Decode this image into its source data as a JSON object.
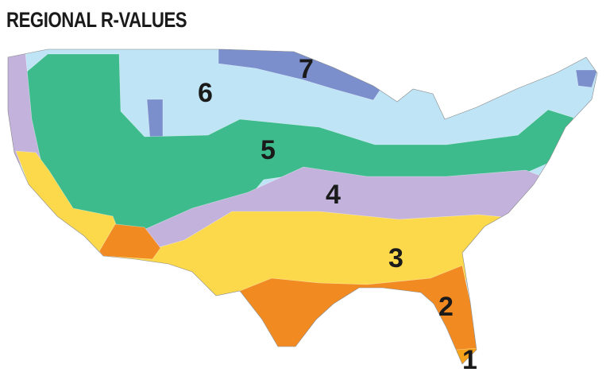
{
  "title": "REGIONAL R-VALUES",
  "map": {
    "zones": [
      {
        "label": "1",
        "color": "#f7a21b"
      },
      {
        "label": "2",
        "color": "#f28a22"
      },
      {
        "label": "3",
        "color": "#fbd94a"
      },
      {
        "label": "4",
        "color": "#c3b2dc"
      },
      {
        "label": "5",
        "color": "#3dbb8c"
      },
      {
        "label": "6",
        "color": "#bfe4f6"
      },
      {
        "label": "7",
        "color": "#7b8fcd"
      }
    ]
  }
}
